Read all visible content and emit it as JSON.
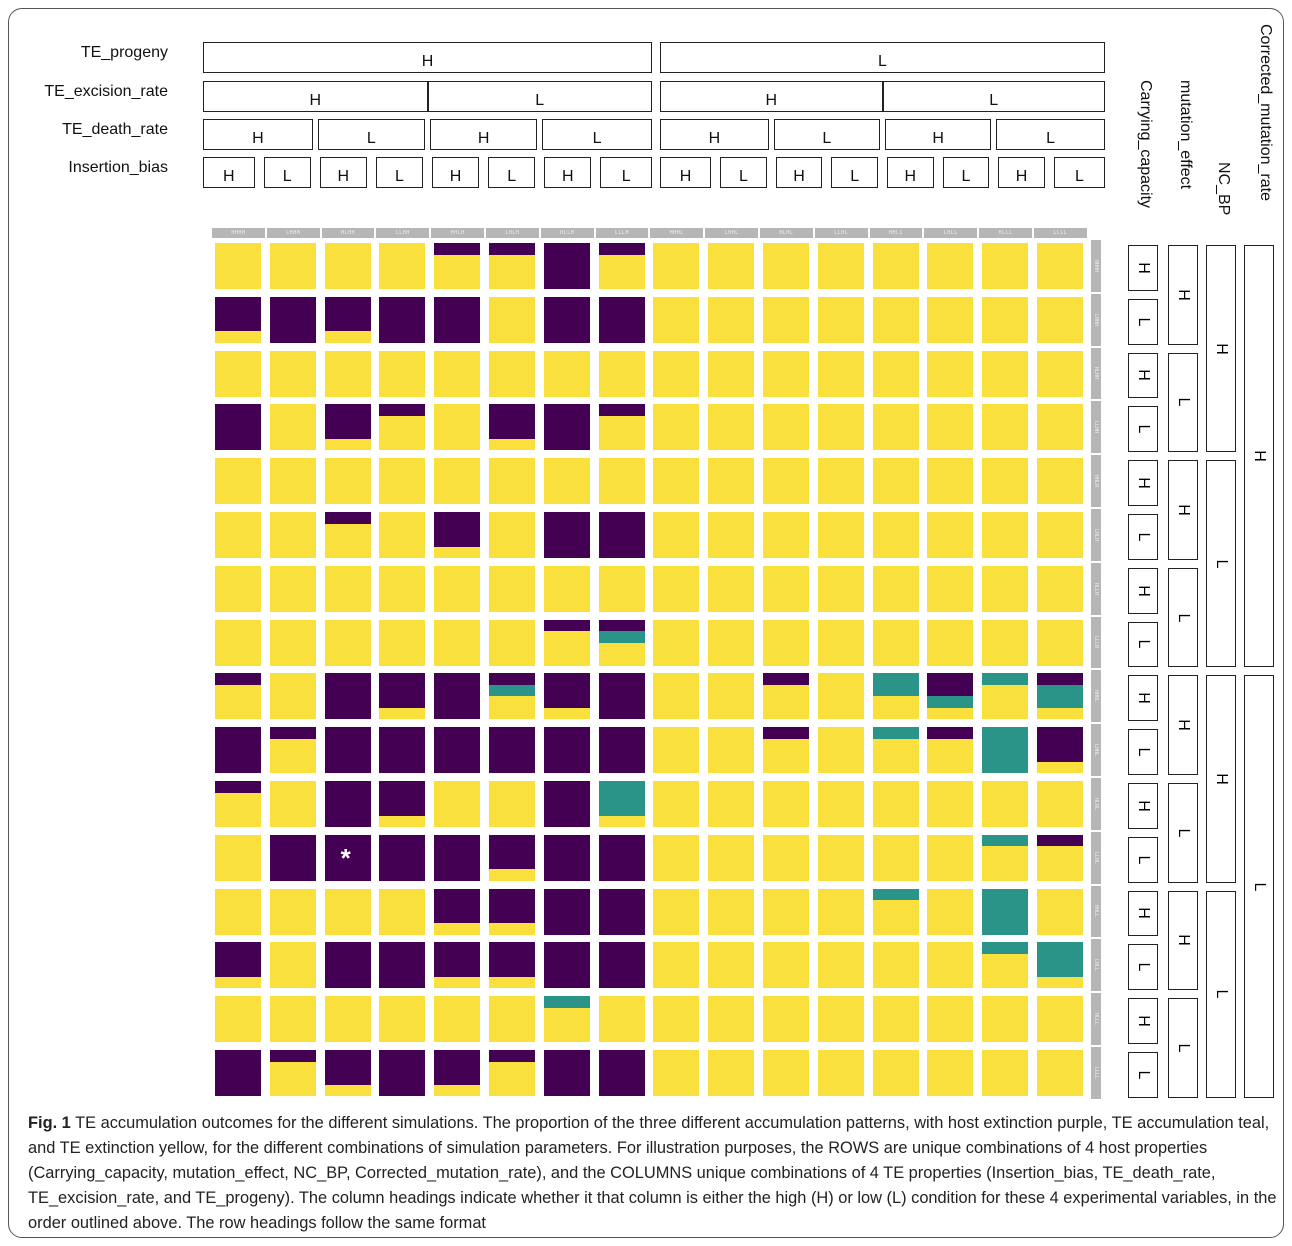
{
  "header_rows": [
    {
      "label": "TE_progeny",
      "groups": [
        "H",
        "L"
      ]
    },
    {
      "label": "TE_excision_rate",
      "groups": [
        "H",
        "L",
        "H",
        "L"
      ]
    },
    {
      "label": "TE_death_rate",
      "groups": [
        "H",
        "L",
        "H",
        "L",
        "H",
        "L",
        "H",
        "L"
      ]
    },
    {
      "label": "Insertion_bias",
      "groups": [
        "H",
        "L",
        "H",
        "L",
        "H",
        "L",
        "H",
        "L",
        "H",
        "L",
        "H",
        "L",
        "H",
        "L",
        "H",
        "L"
      ]
    }
  ],
  "side_cols": [
    {
      "label": "Carrying_capacity",
      "groups": [
        "H",
        "L",
        "H",
        "L",
        "H",
        "L",
        "H",
        "L",
        "H",
        "L",
        "H",
        "L",
        "H",
        "L",
        "H",
        "L"
      ]
    },
    {
      "label": "mutation_effect",
      "groups": [
        "H",
        "L",
        "H",
        "L",
        "H",
        "L",
        "H",
        "L"
      ]
    },
    {
      "label": "NC_BP",
      "groups": [
        "H",
        "L",
        "H",
        "L"
      ]
    },
    {
      "label": "Corrected_mutation_rate",
      "groups": [
        "H",
        "L"
      ]
    }
  ],
  "colors": {
    "host_extinction": "#440154",
    "te_accumulation": "#2a9488",
    "te_extinction": "#f9e03c",
    "header_gray": "#b6b6b6"
  },
  "chart_data": {
    "type": "heatmap",
    "description_of_cells": "each cell is a stacked proportion [host extinction (purple), TE accumulation (teal), TE extinction (yellow)], top to bottom",
    "column_labels": [
      "HHHH",
      "LHHH",
      "HLHH",
      "LLHH",
      "HHLH",
      "LHLH",
      "HLLH",
      "LLLH",
      "HHHL",
      "LHHL",
      "HLHL",
      "LLHL",
      "HHLL",
      "LHLL",
      "HLLL",
      "LLLL"
    ],
    "row_labels": [
      "HHHH",
      "LHHH",
      "HLHH",
      "LLHH",
      "HHLH",
      "LHLH",
      "HLLH",
      "LLLH",
      "HHHL",
      "LHHL",
      "HLHL",
      "LLHL",
      "HHLL",
      "LHLL",
      "HLLL",
      "LLLL"
    ],
    "cells": [
      [
        [
          0,
          0,
          1
        ],
        [
          0,
          0,
          1
        ],
        [
          0,
          0,
          1
        ],
        [
          0,
          0,
          1
        ],
        [
          0.25,
          0,
          0.75
        ],
        [
          0.25,
          0,
          0.75
        ],
        [
          1,
          0,
          0
        ],
        [
          0.25,
          0,
          0.75
        ],
        [
          0,
          0,
          1
        ],
        [
          0,
          0,
          1
        ],
        [
          0,
          0,
          1
        ],
        [
          0,
          0,
          1
        ],
        [
          0,
          0,
          1
        ],
        [
          0,
          0,
          1
        ],
        [
          0,
          0,
          1
        ],
        [
          0,
          0,
          1
        ]
      ],
      [
        [
          0.75,
          0,
          0.25
        ],
        [
          1,
          0,
          0
        ],
        [
          0.75,
          0,
          0.25
        ],
        [
          1,
          0,
          0
        ],
        [
          1,
          0,
          0
        ],
        [
          0,
          0,
          1
        ],
        [
          1,
          0,
          0
        ],
        [
          1,
          0,
          0
        ],
        [
          0,
          0,
          1
        ],
        [
          0,
          0,
          1
        ],
        [
          0,
          0,
          1
        ],
        [
          0,
          0,
          1
        ],
        [
          0,
          0,
          1
        ],
        [
          0,
          0,
          1
        ],
        [
          0,
          0,
          1
        ],
        [
          0,
          0,
          1
        ]
      ],
      [
        [
          0,
          0,
          1
        ],
        [
          0,
          0,
          1
        ],
        [
          0,
          0,
          1
        ],
        [
          0,
          0,
          1
        ],
        [
          0,
          0,
          1
        ],
        [
          0,
          0,
          1
        ],
        [
          0,
          0,
          1
        ],
        [
          0,
          0,
          1
        ],
        [
          0,
          0,
          1
        ],
        [
          0,
          0,
          1
        ],
        [
          0,
          0,
          1
        ],
        [
          0,
          0,
          1
        ],
        [
          0,
          0,
          1
        ],
        [
          0,
          0,
          1
        ],
        [
          0,
          0,
          1
        ],
        [
          0,
          0,
          1
        ]
      ],
      [
        [
          1,
          0,
          0
        ],
        [
          0,
          0,
          1
        ],
        [
          0.75,
          0,
          0.25
        ],
        [
          0.25,
          0,
          0.75
        ],
        [
          0,
          0,
          1
        ],
        [
          0.75,
          0,
          0.25
        ],
        [
          1,
          0,
          0
        ],
        [
          0.25,
          0,
          0.75
        ],
        [
          0,
          0,
          1
        ],
        [
          0,
          0,
          1
        ],
        [
          0,
          0,
          1
        ],
        [
          0,
          0,
          1
        ],
        [
          0,
          0,
          1
        ],
        [
          0,
          0,
          1
        ],
        [
          0,
          0,
          1
        ],
        [
          0,
          0,
          1
        ]
      ],
      [
        [
          0,
          0,
          1
        ],
        [
          0,
          0,
          1
        ],
        [
          0,
          0,
          1
        ],
        [
          0,
          0,
          1
        ],
        [
          0,
          0,
          1
        ],
        [
          0,
          0,
          1
        ],
        [
          0,
          0,
          1
        ],
        [
          0,
          0,
          1
        ],
        [
          0,
          0,
          1
        ],
        [
          0,
          0,
          1
        ],
        [
          0,
          0,
          1
        ],
        [
          0,
          0,
          1
        ],
        [
          0,
          0,
          1
        ],
        [
          0,
          0,
          1
        ],
        [
          0,
          0,
          1
        ],
        [
          0,
          0,
          1
        ]
      ],
      [
        [
          0,
          0,
          1
        ],
        [
          0,
          0,
          1
        ],
        [
          0.25,
          0,
          0.75
        ],
        [
          0,
          0,
          1
        ],
        [
          0.75,
          0,
          0.25
        ],
        [
          0,
          0,
          1
        ],
        [
          1,
          0,
          0
        ],
        [
          1,
          0,
          0
        ],
        [
          0,
          0,
          1
        ],
        [
          0,
          0,
          1
        ],
        [
          0,
          0,
          1
        ],
        [
          0,
          0,
          1
        ],
        [
          0,
          0,
          1
        ],
        [
          0,
          0,
          1
        ],
        [
          0,
          0,
          1
        ],
        [
          0,
          0,
          1
        ]
      ],
      [
        [
          0,
          0,
          1
        ],
        [
          0,
          0,
          1
        ],
        [
          0,
          0,
          1
        ],
        [
          0,
          0,
          1
        ],
        [
          0,
          0,
          1
        ],
        [
          0,
          0,
          1
        ],
        [
          0,
          0,
          1
        ],
        [
          0,
          0,
          1
        ],
        [
          0,
          0,
          1
        ],
        [
          0,
          0,
          1
        ],
        [
          0,
          0,
          1
        ],
        [
          0,
          0,
          1
        ],
        [
          0,
          0,
          1
        ],
        [
          0,
          0,
          1
        ],
        [
          0,
          0,
          1
        ],
        [
          0,
          0,
          1
        ]
      ],
      [
        [
          0,
          0,
          1
        ],
        [
          0,
          0,
          1
        ],
        [
          0,
          0,
          1
        ],
        [
          0,
          0,
          1
        ],
        [
          0,
          0,
          1
        ],
        [
          0,
          0,
          1
        ],
        [
          0.25,
          0,
          0.75
        ],
        [
          0.25,
          0.25,
          0.5
        ],
        [
          0,
          0,
          1
        ],
        [
          0,
          0,
          1
        ],
        [
          0,
          0,
          1
        ],
        [
          0,
          0,
          1
        ],
        [
          0,
          0,
          1
        ],
        [
          0,
          0,
          1
        ],
        [
          0,
          0,
          1
        ],
        [
          0,
          0,
          1
        ]
      ],
      [
        [
          0.25,
          0,
          0.75
        ],
        [
          0,
          0,
          1
        ],
        [
          1,
          0,
          0
        ],
        [
          0.75,
          0,
          0.25
        ],
        [
          1,
          0,
          0
        ],
        [
          0.25,
          0.25,
          0.5
        ],
        [
          0.75,
          0,
          0.25
        ],
        [
          1,
          0,
          0
        ],
        [
          0,
          0,
          1
        ],
        [
          0,
          0,
          1
        ],
        [
          0.25,
          0,
          0.75
        ],
        [
          0,
          0,
          1
        ],
        [
          0,
          0.5,
          0.5
        ],
        [
          0.5,
          0.25,
          0.25
        ],
        [
          0,
          0.25,
          0.75
        ],
        [
          0.25,
          0.5,
          0.25
        ]
      ],
      [
        [
          1,
          0,
          0
        ],
        [
          0.25,
          0,
          0.75
        ],
        [
          1,
          0,
          0
        ],
        [
          1,
          0,
          0
        ],
        [
          1,
          0,
          0
        ],
        [
          1,
          0,
          0
        ],
        [
          1,
          0,
          0
        ],
        [
          1,
          0,
          0
        ],
        [
          0,
          0,
          1
        ],
        [
          0,
          0,
          1
        ],
        [
          0.25,
          0,
          0.75
        ],
        [
          0,
          0,
          1
        ],
        [
          0,
          0.25,
          0.75
        ],
        [
          0.25,
          0,
          0.75
        ],
        [
          0,
          1,
          0
        ],
        [
          0.75,
          0,
          0.25
        ]
      ],
      [
        [
          0.25,
          0,
          0.75
        ],
        [
          0,
          0,
          1
        ],
        [
          1,
          0,
          0
        ],
        [
          0.75,
          0,
          0.25
        ],
        [
          0,
          0,
          1
        ],
        [
          0,
          0,
          1
        ],
        [
          1,
          0,
          0
        ],
        [
          0,
          0.75,
          0.25
        ],
        [
          0,
          0,
          1
        ],
        [
          0,
          0,
          1
        ],
        [
          0,
          0,
          1
        ],
        [
          0,
          0,
          1
        ],
        [
          0,
          0,
          1
        ],
        [
          0,
          0,
          1
        ],
        [
          0,
          0,
          1
        ],
        [
          0,
          0,
          1
        ]
      ],
      [
        [
          0,
          0,
          1
        ],
        [
          1,
          0,
          0
        ],
        [
          1,
          0,
          0
        ],
        [
          1,
          0,
          0
        ],
        [
          1,
          0,
          0
        ],
        [
          0.75,
          0,
          0.25
        ],
        [
          1,
          0,
          0
        ],
        [
          1,
          0,
          0
        ],
        [
          0,
          0,
          1
        ],
        [
          0,
          0,
          1
        ],
        [
          0,
          0,
          1
        ],
        [
          0,
          0,
          1
        ],
        [
          0,
          0,
          1
        ],
        [
          0,
          0,
          1
        ],
        [
          0,
          0.25,
          0.75
        ],
        [
          0.25,
          0,
          0.75
        ]
      ],
      [
        [
          0,
          0,
          1
        ],
        [
          0,
          0,
          1
        ],
        [
          0,
          0,
          1
        ],
        [
          0,
          0,
          1
        ],
        [
          0.75,
          0,
          0.25
        ],
        [
          0.75,
          0,
          0.25
        ],
        [
          1,
          0,
          0
        ],
        [
          1,
          0,
          0
        ],
        [
          0,
          0,
          1
        ],
        [
          0,
          0,
          1
        ],
        [
          0,
          0,
          1
        ],
        [
          0,
          0,
          1
        ],
        [
          0,
          0.25,
          0.75
        ],
        [
          0,
          0,
          1
        ],
        [
          0,
          1,
          0
        ],
        [
          0,
          0,
          1
        ]
      ],
      [
        [
          0.75,
          0,
          0.25
        ],
        [
          0,
          0,
          1
        ],
        [
          1,
          0,
          0
        ],
        [
          1,
          0,
          0
        ],
        [
          0.75,
          0,
          0.25
        ],
        [
          0.75,
          0,
          0.25
        ],
        [
          1,
          0,
          0
        ],
        [
          1,
          0,
          0
        ],
        [
          0,
          0,
          1
        ],
        [
          0,
          0,
          1
        ],
        [
          0,
          0,
          1
        ],
        [
          0,
          0,
          1
        ],
        [
          0,
          0,
          1
        ],
        [
          0,
          0,
          1
        ],
        [
          0,
          0.25,
          0.75
        ],
        [
          0,
          0.75,
          0.25
        ]
      ],
      [
        [
          0,
          0,
          1
        ],
        [
          0,
          0,
          1
        ],
        [
          0,
          0,
          1
        ],
        [
          0,
          0,
          1
        ],
        [
          0,
          0,
          1
        ],
        [
          0,
          0,
          1
        ],
        [
          0,
          0.25,
          0.75
        ],
        [
          0,
          0,
          1
        ],
        [
          0,
          0,
          1
        ],
        [
          0,
          0,
          1
        ],
        [
          0,
          0,
          1
        ],
        [
          0,
          0,
          1
        ],
        [
          0,
          0,
          1
        ],
        [
          0,
          0,
          1
        ],
        [
          0,
          0,
          1
        ],
        [
          0,
          0,
          1
        ]
      ],
      [
        [
          1,
          0,
          0
        ],
        [
          0.25,
          0,
          0.75
        ],
        [
          0.75,
          0,
          0.25
        ],
        [
          1,
          0,
          0
        ],
        [
          0.75,
          0,
          0.25
        ],
        [
          0.25,
          0,
          0.75
        ],
        [
          1,
          0,
          0
        ],
        [
          1,
          0,
          0
        ],
        [
          0,
          0,
          1
        ],
        [
          0,
          0,
          1
        ],
        [
          0,
          0,
          1
        ],
        [
          0,
          0,
          1
        ],
        [
          0,
          0,
          1
        ],
        [
          0,
          0,
          1
        ],
        [
          0,
          0,
          1
        ],
        [
          0,
          0,
          1
        ]
      ]
    ],
    "annotations": [
      {
        "row": 11,
        "col": 2,
        "text": "*"
      }
    ]
  },
  "caption": {
    "fig_label": "Fig. 1",
    "text": "TE accumulation outcomes for the different simulations. The proportion of the three different accumulation patterns, with host extinction purple, TE accumulation teal, and TE extinction yellow, for the different combinations of simulation parameters. For illustration purposes, the ROWS are unique combinations of 4 host properties (Carrying_capacity, mutation_effect, NC_BP, Corrected_mutation_rate), and the COLUMNS unique combinations of 4 TE properties (Insertion_bias, TE_death_rate, TE_excision_rate, and TE_progeny). The column headings indicate whether it that column is either the high (H) or low (L) condition for these 4 experimental variables, in the order outlined above. The row headings follow the same format"
  }
}
